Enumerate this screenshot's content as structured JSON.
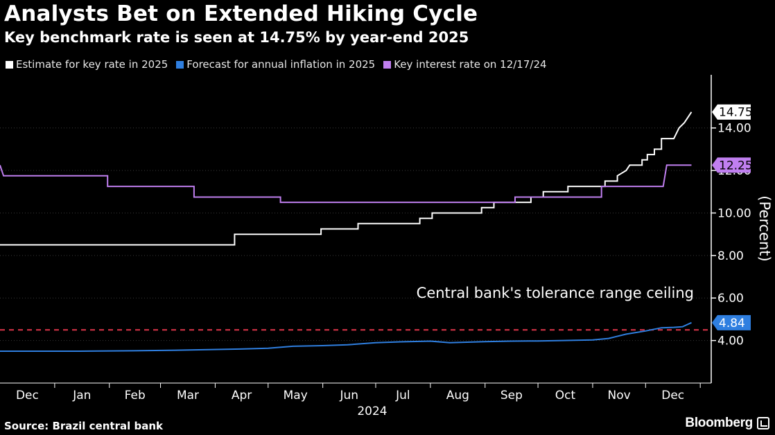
{
  "header": {
    "title": "Analysts Bet on Extended Hiking Cycle",
    "subtitle": "Key benchmark rate is seen at 14.75% by year-end 2025"
  },
  "legend": [
    {
      "label": "Estimate for key rate in 2025",
      "color": "#ffffff"
    },
    {
      "label": "Forecast for annual inflation in 2025",
      "color": "#2f7fe0"
    },
    {
      "label": "Key interest rate on 12/17/24",
      "color": "#c07ff0"
    }
  ],
  "footer": {
    "source": "Source: Brazil central bank",
    "brand": "Bloomberg"
  },
  "chart_data": {
    "type": "line",
    "xlabel": "2024",
    "ylabel": "(Percent)",
    "ylim": [
      2,
      16.5
    ],
    "x_range": [
      "2023-12-01",
      "2024-12-28"
    ],
    "x_tick_labels": [
      "Dec",
      "Jan",
      "Feb",
      "Mar",
      "Apr",
      "May",
      "Jun",
      "Jul",
      "Aug",
      "Sep",
      "Oct",
      "Nov",
      "Dec"
    ],
    "y_ticks": [
      4,
      6,
      8,
      10,
      12,
      14
    ],
    "y_tick_labels": [
      "4.00",
      "6.00",
      "8.00",
      "10.00",
      "12.00",
      "14.00"
    ],
    "annotation": "Central bank's tolerance range ceiling",
    "reference_line": {
      "value": 4.5,
      "color": "#e0364b",
      "style": "dashed"
    },
    "end_labels": [
      {
        "series": "estimate",
        "text": "14.75"
      },
      {
        "series": "key_rate",
        "text": "12.25"
      },
      {
        "series": "inflation",
        "text": "4.84"
      }
    ],
    "series": [
      {
        "name": "Estimate for key rate in 2025",
        "id": "estimate",
        "color": "#ffffff",
        "step": true,
        "points": [
          [
            "2023-12-01",
            8.5
          ],
          [
            "2024-04-12",
            8.5
          ],
          [
            "2024-04-12",
            9.0
          ],
          [
            "2024-05-31",
            9.0
          ],
          [
            "2024-05-31",
            9.25
          ],
          [
            "2024-06-21",
            9.25
          ],
          [
            "2024-06-21",
            9.5
          ],
          [
            "2024-07-26",
            9.5
          ],
          [
            "2024-07-26",
            9.75
          ],
          [
            "2024-08-02",
            9.75
          ],
          [
            "2024-08-02",
            10.0
          ],
          [
            "2024-08-30",
            10.0
          ],
          [
            "2024-08-30",
            10.25
          ],
          [
            "2024-09-06",
            10.25
          ],
          [
            "2024-09-06",
            10.5
          ],
          [
            "2024-09-27",
            10.5
          ],
          [
            "2024-09-27",
            10.75
          ],
          [
            "2024-10-04",
            10.75
          ],
          [
            "2024-10-04",
            11.0
          ],
          [
            "2024-10-18",
            11.0
          ],
          [
            "2024-10-18",
            11.25
          ],
          [
            "2024-11-08",
            11.25
          ],
          [
            "2024-11-08",
            11.5
          ],
          [
            "2024-11-15",
            11.5
          ],
          [
            "2024-11-15",
            11.75
          ],
          [
            "2024-11-20",
            12.0
          ],
          [
            "2024-11-22",
            12.25
          ],
          [
            "2024-11-29",
            12.25
          ],
          [
            "2024-11-29",
            12.5
          ],
          [
            "2024-12-02",
            12.5
          ],
          [
            "2024-12-02",
            12.75
          ],
          [
            "2024-12-06",
            12.75
          ],
          [
            "2024-12-06",
            13.0
          ],
          [
            "2024-12-10",
            13.0
          ],
          [
            "2024-12-10",
            13.5
          ],
          [
            "2024-12-17",
            13.5
          ],
          [
            "2024-12-20",
            14.0
          ],
          [
            "2024-12-23",
            14.25
          ],
          [
            "2024-12-27",
            14.75
          ]
        ]
      },
      {
        "name": "Forecast for annual inflation in 2025",
        "id": "inflation",
        "color": "#2f7fe0",
        "step": false,
        "points": [
          [
            "2023-12-01",
            3.5
          ],
          [
            "2024-01-15",
            3.5
          ],
          [
            "2024-02-15",
            3.52
          ],
          [
            "2024-03-15",
            3.55
          ],
          [
            "2024-04-15",
            3.6
          ],
          [
            "2024-05-01",
            3.64
          ],
          [
            "2024-05-15",
            3.73
          ],
          [
            "2024-06-01",
            3.76
          ],
          [
            "2024-06-15",
            3.8
          ],
          [
            "2024-07-01",
            3.9
          ],
          [
            "2024-07-15",
            3.94
          ],
          [
            "2024-08-01",
            3.97
          ],
          [
            "2024-08-12",
            3.9
          ],
          [
            "2024-08-20",
            3.92
          ],
          [
            "2024-09-01",
            3.95
          ],
          [
            "2024-09-15",
            3.97
          ],
          [
            "2024-10-01",
            3.98
          ],
          [
            "2024-10-15",
            4.0
          ],
          [
            "2024-11-01",
            4.03
          ],
          [
            "2024-11-10",
            4.1
          ],
          [
            "2024-11-20",
            4.3
          ],
          [
            "2024-12-01",
            4.45
          ],
          [
            "2024-12-10",
            4.6
          ],
          [
            "2024-12-17",
            4.62
          ],
          [
            "2024-12-22",
            4.65
          ],
          [
            "2024-12-27",
            4.84
          ]
        ]
      },
      {
        "name": "Key interest rate on 12/17/24",
        "id": "key_rate",
        "color": "#c07ff0",
        "step": true,
        "points": [
          [
            "2023-12-01",
            12.25
          ],
          [
            "2023-12-03",
            11.75
          ],
          [
            "2024-01-31",
            11.75
          ],
          [
            "2024-01-31",
            11.25
          ],
          [
            "2024-03-20",
            11.25
          ],
          [
            "2024-03-20",
            10.75
          ],
          [
            "2024-05-08",
            10.75
          ],
          [
            "2024-05-08",
            10.5
          ],
          [
            "2024-09-18",
            10.5
          ],
          [
            "2024-09-18",
            10.75
          ],
          [
            "2024-11-06",
            10.75
          ],
          [
            "2024-11-06",
            11.25
          ],
          [
            "2024-12-11",
            11.25
          ],
          [
            "2024-12-13",
            12.25
          ],
          [
            "2024-12-27",
            12.25
          ]
        ]
      }
    ]
  }
}
